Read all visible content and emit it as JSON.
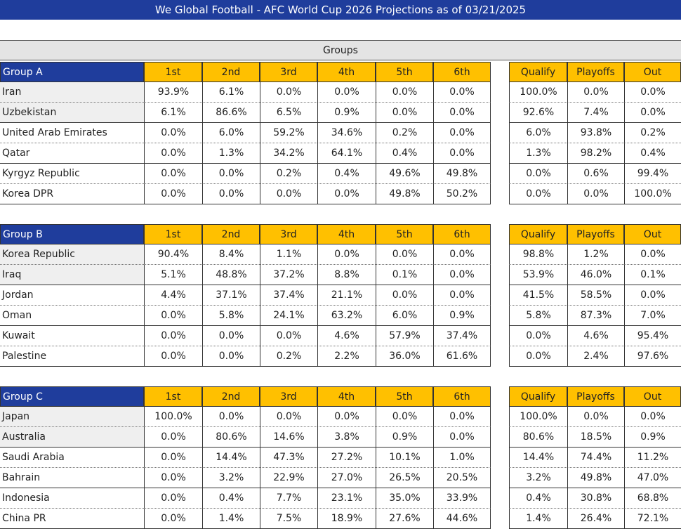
{
  "title": "We Global Football - AFC World Cup 2026 Projections as of 03/21/2025",
  "section_header": "Groups",
  "groups": [
    {
      "name": "Group A",
      "columns": [
        "1st",
        "2nd",
        "3rd",
        "4th",
        "5th",
        "6th"
      ],
      "outcome_columns": [
        "Qualify",
        "Playoffs",
        "Out"
      ],
      "rows": [
        {
          "team": "Iran",
          "positions": [
            "93.9%",
            "6.1%",
            "0.0%",
            "0.0%",
            "0.0%",
            "0.0%"
          ],
          "outcomes": [
            "100.0%",
            "0.0%",
            "0.0%"
          ]
        },
        {
          "team": "Uzbekistan",
          "positions": [
            "6.1%",
            "86.6%",
            "6.5%",
            "0.9%",
            "0.0%",
            "0.0%"
          ],
          "outcomes": [
            "92.6%",
            "7.4%",
            "0.0%"
          ]
        },
        {
          "team": "United Arab Emirates",
          "positions": [
            "0.0%",
            "6.0%",
            "59.2%",
            "34.6%",
            "0.2%",
            "0.0%"
          ],
          "outcomes": [
            "6.0%",
            "93.8%",
            "0.2%"
          ]
        },
        {
          "team": "Qatar",
          "positions": [
            "0.0%",
            "1.3%",
            "34.2%",
            "64.1%",
            "0.4%",
            "0.0%"
          ],
          "outcomes": [
            "1.3%",
            "98.2%",
            "0.4%"
          ]
        },
        {
          "team": "Kyrgyz Republic",
          "positions": [
            "0.0%",
            "0.0%",
            "0.2%",
            "0.4%",
            "49.6%",
            "49.8%"
          ],
          "outcomes": [
            "0.0%",
            "0.6%",
            "99.4%"
          ]
        },
        {
          "team": "Korea DPR",
          "positions": [
            "0.0%",
            "0.0%",
            "0.0%",
            "0.0%",
            "49.8%",
            "50.2%"
          ],
          "outcomes": [
            "0.0%",
            "0.0%",
            "100.0%"
          ]
        }
      ]
    },
    {
      "name": "Group B",
      "columns": [
        "1st",
        "2nd",
        "3rd",
        "4th",
        "5th",
        "6th"
      ],
      "outcome_columns": [
        "Qualify",
        "Playoffs",
        "Out"
      ],
      "rows": [
        {
          "team": "Korea Republic",
          "positions": [
            "90.4%",
            "8.4%",
            "1.1%",
            "0.0%",
            "0.0%",
            "0.0%"
          ],
          "outcomes": [
            "98.8%",
            "1.2%",
            "0.0%"
          ]
        },
        {
          "team": "Iraq",
          "positions": [
            "5.1%",
            "48.8%",
            "37.2%",
            "8.8%",
            "0.1%",
            "0.0%"
          ],
          "outcomes": [
            "53.9%",
            "46.0%",
            "0.1%"
          ]
        },
        {
          "team": "Jordan",
          "positions": [
            "4.4%",
            "37.1%",
            "37.4%",
            "21.1%",
            "0.0%",
            "0.0%"
          ],
          "outcomes": [
            "41.5%",
            "58.5%",
            "0.0%"
          ]
        },
        {
          "team": "Oman",
          "positions": [
            "0.0%",
            "5.8%",
            "24.1%",
            "63.2%",
            "6.0%",
            "0.9%"
          ],
          "outcomes": [
            "5.8%",
            "87.3%",
            "7.0%"
          ]
        },
        {
          "team": "Kuwait",
          "positions": [
            "0.0%",
            "0.0%",
            "0.0%",
            "4.6%",
            "57.9%",
            "37.4%"
          ],
          "outcomes": [
            "0.0%",
            "4.6%",
            "95.4%"
          ]
        },
        {
          "team": "Palestine",
          "positions": [
            "0.0%",
            "0.0%",
            "0.2%",
            "2.2%",
            "36.0%",
            "61.6%"
          ],
          "outcomes": [
            "0.0%",
            "2.4%",
            "97.6%"
          ]
        }
      ]
    },
    {
      "name": "Group C",
      "columns": [
        "1st",
        "2nd",
        "3rd",
        "4th",
        "5th",
        "6th"
      ],
      "outcome_columns": [
        "Qualify",
        "Playoffs",
        "Out"
      ],
      "rows": [
        {
          "team": "Japan",
          "positions": [
            "100.0%",
            "0.0%",
            "0.0%",
            "0.0%",
            "0.0%",
            "0.0%"
          ],
          "outcomes": [
            "100.0%",
            "0.0%",
            "0.0%"
          ]
        },
        {
          "team": "Australia",
          "positions": [
            "0.0%",
            "80.6%",
            "14.6%",
            "3.8%",
            "0.9%",
            "0.0%"
          ],
          "outcomes": [
            "80.6%",
            "18.5%",
            "0.9%"
          ]
        },
        {
          "team": "Saudi Arabia",
          "positions": [
            "0.0%",
            "14.4%",
            "47.3%",
            "27.2%",
            "10.1%",
            "1.0%"
          ],
          "outcomes": [
            "14.4%",
            "74.4%",
            "11.2%"
          ]
        },
        {
          "team": "Bahrain",
          "positions": [
            "0.0%",
            "3.2%",
            "22.9%",
            "27.0%",
            "26.5%",
            "20.5%"
          ],
          "outcomes": [
            "3.2%",
            "49.8%",
            "47.0%"
          ]
        },
        {
          "team": "Indonesia",
          "positions": [
            "0.0%",
            "0.4%",
            "7.7%",
            "23.1%",
            "35.0%",
            "33.9%"
          ],
          "outcomes": [
            "0.4%",
            "30.8%",
            "68.8%"
          ]
        },
        {
          "team": "China PR",
          "positions": [
            "0.0%",
            "1.4%",
            "7.5%",
            "18.9%",
            "27.6%",
            "44.6%"
          ],
          "outcomes": [
            "1.4%",
            "26.4%",
            "72.1%"
          ]
        }
      ]
    }
  ]
}
